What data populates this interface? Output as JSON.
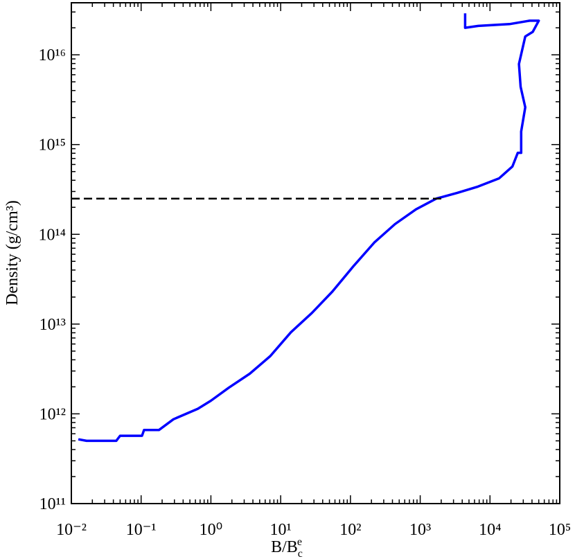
{
  "chart_data": {
    "type": "line",
    "log_x": true,
    "log_y": true,
    "minor_ticks": true,
    "xlabel": {
      "text": "B/B",
      "sub": "c",
      "sup": "e"
    },
    "ylabel": "Density (g/cm³)",
    "xlim": [
      0.01,
      100000
    ],
    "ylim": [
      100000000000.0,
      3.8e+16
    ],
    "xticks": [
      {
        "value": 0.01,
        "label": "10⁻²"
      },
      {
        "value": 0.1,
        "label": "10⁻¹"
      },
      {
        "value": 1,
        "label": "10⁰"
      },
      {
        "value": 10,
        "label": "10¹"
      },
      {
        "value": 100,
        "label": "10²"
      },
      {
        "value": 1000,
        "label": "10³"
      },
      {
        "value": 10000,
        "label": "10⁴"
      },
      {
        "value": 100000,
        "label": "10⁵"
      }
    ],
    "yticks": [
      {
        "value": 100000000000.0,
        "label": "10¹¹"
      },
      {
        "value": 1000000000000.0,
        "label": "10¹²"
      },
      {
        "value": 10000000000000.0,
        "label": "10¹³"
      },
      {
        "value": 100000000000000.0,
        "label": "10¹⁴"
      },
      {
        "value": 1000000000000000.0,
        "label": "10¹⁵"
      },
      {
        "value": 1e+16,
        "label": "10¹⁶"
      }
    ],
    "series": [
      {
        "color": "#0000ff",
        "dash": false,
        "x": [
          0.0126,
          0.0165,
          0.044,
          0.05,
          0.103,
          0.11,
          0.18,
          0.29,
          0.65,
          1.0,
          1.8,
          3.6,
          7.1,
          14,
          28,
          55,
          110,
          220,
          435,
          870,
          1700,
          3400,
          6700,
          13500,
          21000,
          25000,
          28000,
          28000,
          32000,
          27500,
          26000,
          32000,
          41000,
          50000,
          37000,
          19000,
          6800,
          4400,
          4400
        ],
        "values": [
          520000000000.0,
          500000000000.0,
          500000000000.0,
          570000000000.0,
          570000000000.0,
          660000000000.0,
          660000000000.0,
          870000000000.0,
          1140000000000.0,
          1400000000000.0,
          1950000000000.0,
          2800000000000.0,
          4400000000000.0,
          8100000000000.0,
          13300000000000.0,
          23000000000000.0,
          44000000000000.0,
          81000000000000.0,
          130000000000000.0,
          190000000000000.0,
          250000000000000.0,
          290000000000000.0,
          340000000000000.0,
          420000000000000.0,
          570000000000000.0,
          810000000000000.0,
          810000000000000.0,
          1400000000000000.0,
          2600000000000000.0,
          4400000000000000.0,
          7900000000000000.0,
          1.6e+16,
          1.8e+16,
          2.4e+16,
          2.4e+16,
          2.2e+16,
          2.1e+16,
          2e+16,
          2.9e+16
        ]
      },
      {
        "color": "#000000",
        "dash": true,
        "x": [
          0.01,
          2150
        ],
        "values": [
          250000000000000.0,
          250000000000000.0
        ]
      }
    ]
  }
}
